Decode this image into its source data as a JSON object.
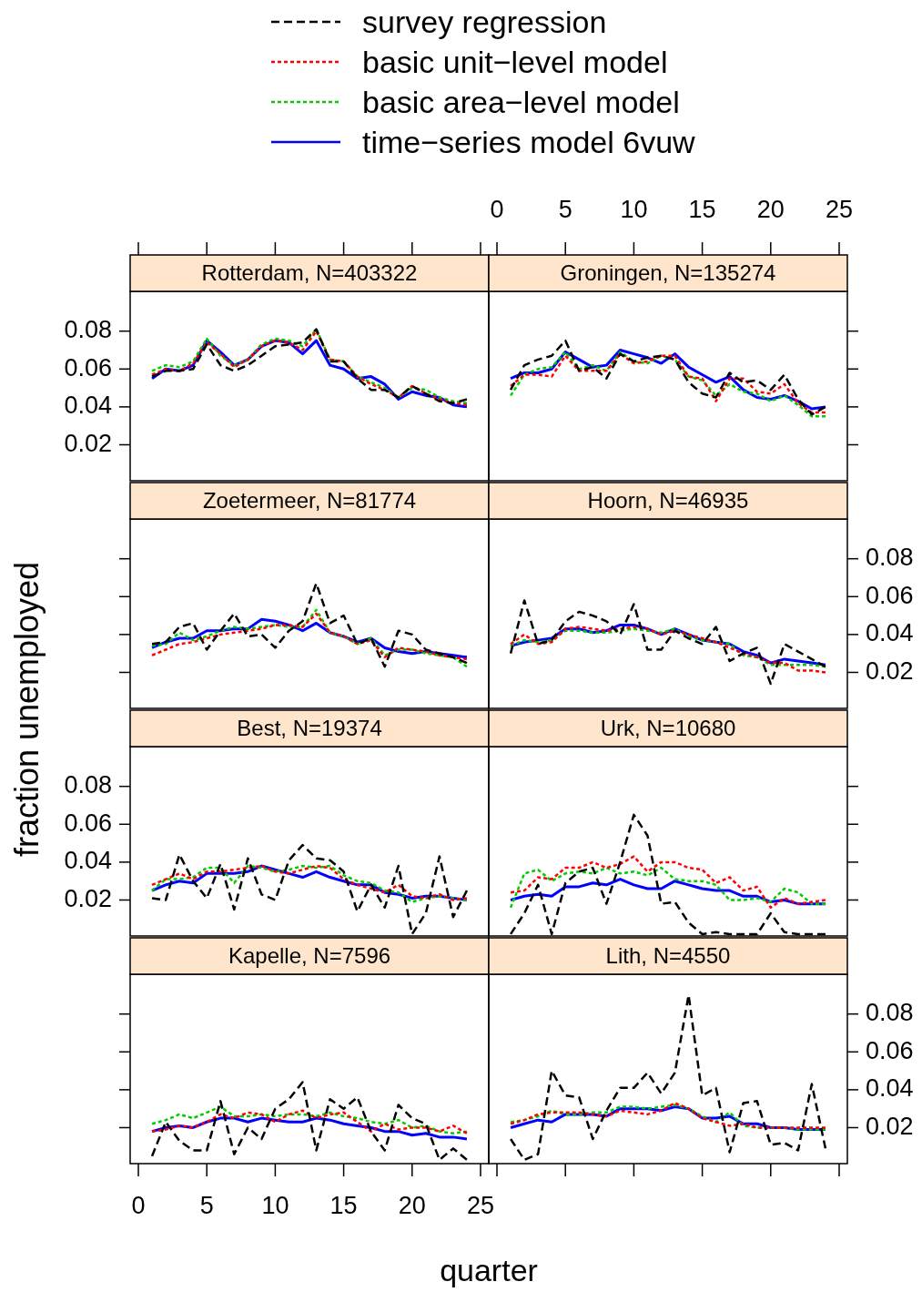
{
  "chart_data": [
    {
      "type": "line",
      "title": "Rotterdam, N=403322",
      "x": [
        1,
        2,
        3,
        4,
        5,
        6,
        7,
        8,
        9,
        10,
        11,
        12,
        13,
        14,
        15,
        16,
        17,
        18,
        19,
        20,
        21,
        22,
        23,
        24
      ],
      "xlim": [
        -0.6,
        25.6
      ],
      "xticks": [
        0,
        5,
        10,
        15,
        20,
        25
      ],
      "ylim": [
        0.001,
        0.101
      ],
      "yticks": [
        0.02,
        0.04,
        0.06,
        0.08
      ],
      "tick_labels": "y",
      "legend": "top",
      "series": [
        {
          "name": "survey regression",
          "color": "#000000",
          "line_style": "dashed",
          "values": [
            0.056,
            0.059,
            0.059,
            0.06,
            0.073,
            0.062,
            0.059,
            0.062,
            0.067,
            0.072,
            0.073,
            0.074,
            0.081,
            0.064,
            0.064,
            0.055,
            0.049,
            0.049,
            0.045,
            0.051,
            0.047,
            0.043,
            0.042,
            0.044
          ]
        },
        {
          "name": "basic unit−level model",
          "color": "#ff0000",
          "line_style": "dotted",
          "values": [
            0.057,
            0.06,
            0.059,
            0.063,
            0.074,
            0.068,
            0.061,
            0.065,
            0.072,
            0.075,
            0.074,
            0.07,
            0.08,
            0.065,
            0.064,
            0.056,
            0.052,
            0.049,
            0.045,
            0.051,
            0.047,
            0.044,
            0.042,
            0.041
          ]
        },
        {
          "name": "basic area−level model",
          "color": "#00cc00",
          "line_style": "dotted",
          "values": [
            0.059,
            0.062,
            0.061,
            0.064,
            0.076,
            0.067,
            0.062,
            0.065,
            0.073,
            0.076,
            0.075,
            0.072,
            0.081,
            0.065,
            0.064,
            0.056,
            0.053,
            0.05,
            0.045,
            0.05,
            0.049,
            0.045,
            0.043,
            0.042
          ]
        },
        {
          "name": "time−series model 6vuw",
          "color": "#0000ff",
          "line_style": "solid",
          "values": [
            0.055,
            0.06,
            0.059,
            0.062,
            0.075,
            0.069,
            0.062,
            0.065,
            0.072,
            0.075,
            0.074,
            0.068,
            0.075,
            0.062,
            0.06,
            0.055,
            0.056,
            0.052,
            0.044,
            0.048,
            0.046,
            0.045,
            0.041,
            0.04
          ]
        }
      ]
    },
    {
      "type": "line",
      "title": "Groningen, N=135274",
      "x": [
        1,
        2,
        3,
        4,
        5,
        6,
        7,
        8,
        9,
        10,
        11,
        12,
        13,
        14,
        15,
        16,
        17,
        18,
        19,
        20,
        21,
        22,
        23,
        24
      ],
      "xlim": [
        -0.6,
        25.6
      ],
      "xticks": [
        0,
        5,
        10,
        15,
        20,
        25
      ],
      "ylim": [
        0.001,
        0.101
      ],
      "yticks": [
        0.02,
        0.04,
        0.06,
        0.08
      ],
      "tick_labels": "x",
      "series": [
        {
          "color": "#000000",
          "line_style": "dashed",
          "values": [
            0.049,
            0.062,
            0.065,
            0.067,
            0.075,
            0.059,
            0.061,
            0.055,
            0.068,
            0.064,
            0.066,
            0.067,
            0.065,
            0.053,
            0.047,
            0.045,
            0.058,
            0.053,
            0.054,
            0.049,
            0.057,
            0.044,
            0.036,
            0.04
          ]
        },
        {
          "color": "#ff0000",
          "line_style": "dotted",
          "values": [
            0.051,
            0.057,
            0.057,
            0.056,
            0.067,
            0.059,
            0.059,
            0.059,
            0.068,
            0.063,
            0.064,
            0.067,
            0.067,
            0.056,
            0.055,
            0.043,
            0.055,
            0.055,
            0.048,
            0.047,
            0.052,
            0.042,
            0.037,
            0.037
          ]
        },
        {
          "color": "#00cc00",
          "line_style": "dotted",
          "values": [
            0.046,
            0.057,
            0.06,
            0.061,
            0.069,
            0.06,
            0.062,
            0.059,
            0.069,
            0.064,
            0.063,
            0.067,
            0.065,
            0.056,
            0.054,
            0.046,
            0.052,
            0.048,
            0.047,
            0.043,
            0.046,
            0.041,
            0.035,
            0.035
          ]
        },
        {
          "color": "#0000ff",
          "line_style": "solid",
          "values": [
            0.055,
            0.058,
            0.058,
            0.06,
            0.069,
            0.065,
            0.061,
            0.062,
            0.07,
            0.068,
            0.066,
            0.063,
            0.068,
            0.061,
            0.057,
            0.053,
            0.056,
            0.049,
            0.045,
            0.044,
            0.046,
            0.043,
            0.039,
            0.04
          ]
        }
      ]
    },
    {
      "type": "line",
      "title": "Zoetermeer, N=81774",
      "x": [
        1,
        2,
        3,
        4,
        5,
        6,
        7,
        8,
        9,
        10,
        11,
        12,
        13,
        14,
        15,
        16,
        17,
        18,
        19,
        20,
        21,
        22,
        23,
        24
      ],
      "xlim": [
        -0.6,
        25.6
      ],
      "xticks": [
        0,
        5,
        10,
        15,
        20,
        25
      ],
      "ylim": [
        0.001,
        0.101
      ],
      "yticks": [
        0.02,
        0.04,
        0.06,
        0.08
      ],
      "tick_labels": false,
      "ylabel": "fraction unemployed",
      "series": [
        {
          "color": "#000000",
          "line_style": "dashed",
          "values": [
            0.035,
            0.036,
            0.044,
            0.046,
            0.032,
            0.042,
            0.051,
            0.039,
            0.04,
            0.033,
            0.042,
            0.047,
            0.067,
            0.046,
            0.05,
            0.035,
            0.038,
            0.023,
            0.042,
            0.04,
            0.032,
            0.03,
            0.028,
            0.025
          ]
        },
        {
          "color": "#ff0000",
          "line_style": "dotted",
          "values": [
            0.029,
            0.032,
            0.035,
            0.036,
            0.038,
            0.04,
            0.041,
            0.042,
            0.043,
            0.045,
            0.045,
            0.044,
            0.051,
            0.041,
            0.039,
            0.035,
            0.037,
            0.028,
            0.033,
            0.032,
            0.031,
            0.029,
            0.028,
            0.027
          ]
        },
        {
          "color": "#00cc00",
          "line_style": "dotted",
          "values": [
            0.034,
            0.035,
            0.041,
            0.037,
            0.039,
            0.042,
            0.044,
            0.043,
            0.044,
            0.045,
            0.044,
            0.044,
            0.053,
            0.041,
            0.039,
            0.035,
            0.038,
            0.029,
            0.032,
            0.032,
            0.03,
            0.029,
            0.028,
            0.023
          ]
        },
        {
          "color": "#0000ff",
          "line_style": "solid",
          "values": [
            0.033,
            0.036,
            0.038,
            0.038,
            0.042,
            0.042,
            0.043,
            0.043,
            0.048,
            0.047,
            0.045,
            0.042,
            0.046,
            0.041,
            0.039,
            0.036,
            0.038,
            0.033,
            0.031,
            0.03,
            0.031,
            0.03,
            0.029,
            0.028
          ]
        }
      ]
    },
    {
      "type": "line",
      "title": "Hoorn, N=46935",
      "x": [
        1,
        2,
        3,
        4,
        5,
        6,
        7,
        8,
        9,
        10,
        11,
        12,
        13,
        14,
        15,
        16,
        17,
        18,
        19,
        20,
        21,
        22,
        23,
        24
      ],
      "xlim": [
        -0.6,
        25.6
      ],
      "xticks": [
        0,
        5,
        10,
        15,
        20,
        25
      ],
      "ylim": [
        0.001,
        0.101
      ],
      "yticks": [
        0.02,
        0.04,
        0.06,
        0.08
      ],
      "tick_labels": "y",
      "series": [
        {
          "color": "#000000",
          "line_style": "dashed",
          "values": [
            0.03,
            0.058,
            0.035,
            0.037,
            0.047,
            0.052,
            0.05,
            0.047,
            0.04,
            0.056,
            0.032,
            0.032,
            0.042,
            0.038,
            0.035,
            0.044,
            0.026,
            0.03,
            0.033,
            0.014,
            0.035,
            0.031,
            0.027,
            0.023
          ]
        },
        {
          "color": "#ff0000",
          "line_style": "dotted",
          "values": [
            0.035,
            0.04,
            0.035,
            0.036,
            0.043,
            0.044,
            0.043,
            0.042,
            0.043,
            0.044,
            0.043,
            0.04,
            0.042,
            0.04,
            0.038,
            0.036,
            0.033,
            0.03,
            0.028,
            0.025,
            0.025,
            0.021,
            0.021,
            0.02
          ]
        },
        {
          "color": "#00cc00",
          "line_style": "dotted",
          "values": [
            0.034,
            0.037,
            0.036,
            0.037,
            0.042,
            0.042,
            0.041,
            0.041,
            0.042,
            0.043,
            0.042,
            0.041,
            0.043,
            0.039,
            0.037,
            0.036,
            0.035,
            0.029,
            0.028,
            0.024,
            0.024,
            0.024,
            0.024,
            0.023
          ]
        },
        {
          "color": "#0000ff",
          "line_style": "solid",
          "values": [
            0.034,
            0.036,
            0.037,
            0.038,
            0.043,
            0.043,
            0.041,
            0.042,
            0.045,
            0.045,
            0.043,
            0.04,
            0.043,
            0.04,
            0.037,
            0.036,
            0.035,
            0.031,
            0.029,
            0.025,
            0.027,
            0.026,
            0.025,
            0.024
          ]
        }
      ]
    },
    {
      "type": "line",
      "title": "Best, N=19374",
      "x": [
        1,
        2,
        3,
        4,
        5,
        6,
        7,
        8,
        9,
        10,
        11,
        12,
        13,
        14,
        15,
        16,
        17,
        18,
        19,
        20,
        21,
        22,
        23,
        24
      ],
      "xlim": [
        -0.6,
        25.6
      ],
      "xticks": [
        0,
        5,
        10,
        15,
        20,
        25
      ],
      "ylim": [
        0.001,
        0.101
      ],
      "yticks": [
        0.02,
        0.04,
        0.06,
        0.08
      ],
      "tick_labels": "y",
      "series": [
        {
          "color": "#000000",
          "line_style": "dashed",
          "values": [
            0.021,
            0.02,
            0.044,
            0.03,
            0.021,
            0.039,
            0.015,
            0.042,
            0.023,
            0.02,
            0.041,
            0.049,
            0.042,
            0.041,
            0.035,
            0.014,
            0.028,
            0.016,
            0.038,
            0.002,
            0.013,
            0.043,
            0.011,
            0.025
          ]
        },
        {
          "color": "#ff0000",
          "line_style": "dotted",
          "values": [
            0.028,
            0.031,
            0.034,
            0.031,
            0.035,
            0.035,
            0.036,
            0.037,
            0.038,
            0.035,
            0.034,
            0.036,
            0.038,
            0.037,
            0.031,
            0.028,
            0.026,
            0.024,
            0.028,
            0.022,
            0.021,
            0.023,
            0.02,
            0.021
          ]
        },
        {
          "color": "#00cc00",
          "line_style": "dotted",
          "values": [
            0.025,
            0.031,
            0.031,
            0.032,
            0.037,
            0.037,
            0.029,
            0.038,
            0.037,
            0.035,
            0.036,
            0.038,
            0.037,
            0.038,
            0.033,
            0.03,
            0.029,
            0.025,
            0.024,
            0.019,
            0.021,
            0.022,
            0.021,
            0.02
          ]
        },
        {
          "color": "#0000ff",
          "line_style": "solid",
          "values": [
            0.025,
            0.028,
            0.03,
            0.029,
            0.034,
            0.034,
            0.034,
            0.035,
            0.038,
            0.036,
            0.034,
            0.032,
            0.035,
            0.032,
            0.03,
            0.028,
            0.028,
            0.024,
            0.023,
            0.021,
            0.022,
            0.022,
            0.021,
            0.02
          ]
        }
      ]
    },
    {
      "type": "line",
      "title": "Urk, N=10680",
      "x": [
        1,
        2,
        3,
        4,
        5,
        6,
        7,
        8,
        9,
        10,
        11,
        12,
        13,
        14,
        15,
        16,
        17,
        18,
        19,
        20,
        21,
        22,
        23,
        24
      ],
      "xlim": [
        -0.6,
        25.6
      ],
      "xticks": [
        0,
        5,
        10,
        15,
        20,
        25
      ],
      "ylim": [
        0.001,
        0.101
      ],
      "yticks": [
        0.02,
        0.04,
        0.06,
        0.08
      ],
      "tick_labels": false,
      "series": [
        {
          "color": "#000000",
          "line_style": "dashed",
          "values": [
            0.002,
            0.013,
            0.028,
            0.002,
            0.029,
            0.035,
            0.037,
            0.018,
            0.04,
            0.065,
            0.054,
            0.018,
            0.019,
            0.008,
            0.002,
            0.003,
            0.002,
            0.002,
            0.002,
            0.013,
            0.003,
            0.002,
            0.002,
            0.002
          ]
        },
        {
          "color": "#ff0000",
          "line_style": "dotted",
          "values": [
            0.024,
            0.025,
            0.032,
            0.031,
            0.037,
            0.037,
            0.04,
            0.037,
            0.039,
            0.043,
            0.035,
            0.04,
            0.04,
            0.037,
            0.036,
            0.029,
            0.032,
            0.025,
            0.027,
            0.016,
            0.021,
            0.018,
            0.019,
            0.02
          ]
        },
        {
          "color": "#00cc00",
          "line_style": "dotted",
          "values": [
            0.016,
            0.034,
            0.036,
            0.03,
            0.034,
            0.035,
            0.034,
            0.037,
            0.034,
            0.035,
            0.033,
            0.037,
            0.031,
            0.03,
            0.03,
            0.028,
            0.02,
            0.02,
            0.021,
            0.019,
            0.026,
            0.024,
            0.018,
            0.018
          ]
        },
        {
          "color": "#0000ff",
          "line_style": "solid",
          "values": [
            0.02,
            0.022,
            0.023,
            0.022,
            0.027,
            0.027,
            0.029,
            0.028,
            0.031,
            0.028,
            0.026,
            0.026,
            0.03,
            0.028,
            0.026,
            0.025,
            0.025,
            0.022,
            0.022,
            0.019,
            0.02,
            0.018,
            0.018,
            0.018
          ]
        }
      ]
    },
    {
      "type": "line",
      "title": "Kapelle, N=7596",
      "x": [
        1,
        2,
        3,
        4,
        5,
        6,
        7,
        8,
        9,
        10,
        11,
        12,
        13,
        14,
        15,
        16,
        17,
        18,
        19,
        20,
        21,
        22,
        23,
        24
      ],
      "xlim": [
        -0.6,
        25.6
      ],
      "xticks": [
        0,
        5,
        10,
        15,
        20,
        25
      ],
      "ylim": [
        0.001,
        0.101
      ],
      "yticks": [
        0.02,
        0.04,
        0.06,
        0.08
      ],
      "tick_labels": "x",
      "xlabel": "quarter",
      "series": [
        {
          "color": "#000000",
          "line_style": "dashed",
          "values": [
            0.005,
            0.023,
            0.013,
            0.008,
            0.008,
            0.034,
            0.006,
            0.02,
            0.014,
            0.03,
            0.035,
            0.044,
            0.008,
            0.035,
            0.03,
            0.036,
            0.018,
            0.008,
            0.032,
            0.025,
            0.022,
            0.003,
            0.009,
            0.003
          ]
        },
        {
          "color": "#ff0000",
          "line_style": "dotted",
          "values": [
            0.018,
            0.019,
            0.021,
            0.02,
            0.023,
            0.027,
            0.025,
            0.028,
            0.027,
            0.023,
            0.027,
            0.029,
            0.025,
            0.027,
            0.028,
            0.023,
            0.018,
            0.022,
            0.019,
            0.02,
            0.02,
            0.018,
            0.021,
            0.017
          ]
        },
        {
          "color": "#00cc00",
          "line_style": "dotted",
          "values": [
            0.022,
            0.024,
            0.027,
            0.025,
            0.028,
            0.031,
            0.026,
            0.026,
            0.027,
            0.026,
            0.027,
            0.027,
            0.026,
            0.028,
            0.026,
            0.025,
            0.023,
            0.022,
            0.024,
            0.02,
            0.021,
            0.018,
            0.017,
            0.018
          ]
        },
        {
          "color": "#0000ff",
          "line_style": "solid",
          "values": [
            0.018,
            0.02,
            0.021,
            0.02,
            0.023,
            0.025,
            0.025,
            0.023,
            0.025,
            0.024,
            0.023,
            0.023,
            0.025,
            0.024,
            0.022,
            0.021,
            0.02,
            0.018,
            0.018,
            0.016,
            0.017,
            0.015,
            0.015,
            0.014
          ]
        }
      ]
    },
    {
      "type": "line",
      "title": "Lith, N=4550",
      "x": [
        1,
        2,
        3,
        4,
        5,
        6,
        7,
        8,
        9,
        10,
        11,
        12,
        13,
        14,
        15,
        16,
        17,
        18,
        19,
        20,
        21,
        22,
        23,
        24
      ],
      "xlim": [
        -0.6,
        25.6
      ],
      "xticks": [
        0,
        5,
        10,
        15,
        20,
        25
      ],
      "ylim": [
        0.001,
        0.101
      ],
      "yticks": [
        0.02,
        0.04,
        0.06,
        0.08
      ],
      "tick_labels": "y",
      "series": [
        {
          "color": "#000000",
          "line_style": "dashed",
          "values": [
            0.014,
            0.003,
            0.006,
            0.05,
            0.037,
            0.036,
            0.014,
            0.029,
            0.041,
            0.041,
            0.049,
            0.038,
            0.049,
            0.09,
            0.037,
            0.041,
            0.007,
            0.033,
            0.034,
            0.011,
            0.012,
            0.008,
            0.043,
            0.009
          ]
        },
        {
          "color": "#ff0000",
          "line_style": "dotted",
          "values": [
            0.022,
            0.024,
            0.027,
            0.028,
            0.028,
            0.028,
            0.027,
            0.026,
            0.029,
            0.028,
            0.027,
            0.029,
            0.033,
            0.03,
            0.025,
            0.023,
            0.021,
            0.022,
            0.02,
            0.02,
            0.02,
            0.02,
            0.02,
            0.02
          ]
        },
        {
          "color": "#00cc00",
          "line_style": "dotted",
          "values": [
            0.023,
            0.024,
            0.026,
            0.029,
            0.027,
            0.027,
            0.028,
            0.028,
            0.031,
            0.031,
            0.03,
            0.031,
            0.032,
            0.03,
            0.026,
            0.023,
            0.028,
            0.021,
            0.02,
            0.02,
            0.02,
            0.019,
            0.019,
            0.019
          ]
        },
        {
          "color": "#0000ff",
          "line_style": "solid",
          "values": [
            0.02,
            0.022,
            0.024,
            0.023,
            0.027,
            0.027,
            0.027,
            0.026,
            0.03,
            0.03,
            0.03,
            0.029,
            0.031,
            0.03,
            0.025,
            0.025,
            0.026,
            0.022,
            0.022,
            0.02,
            0.02,
            0.019,
            0.019,
            0.019
          ]
        }
      ]
    }
  ]
}
